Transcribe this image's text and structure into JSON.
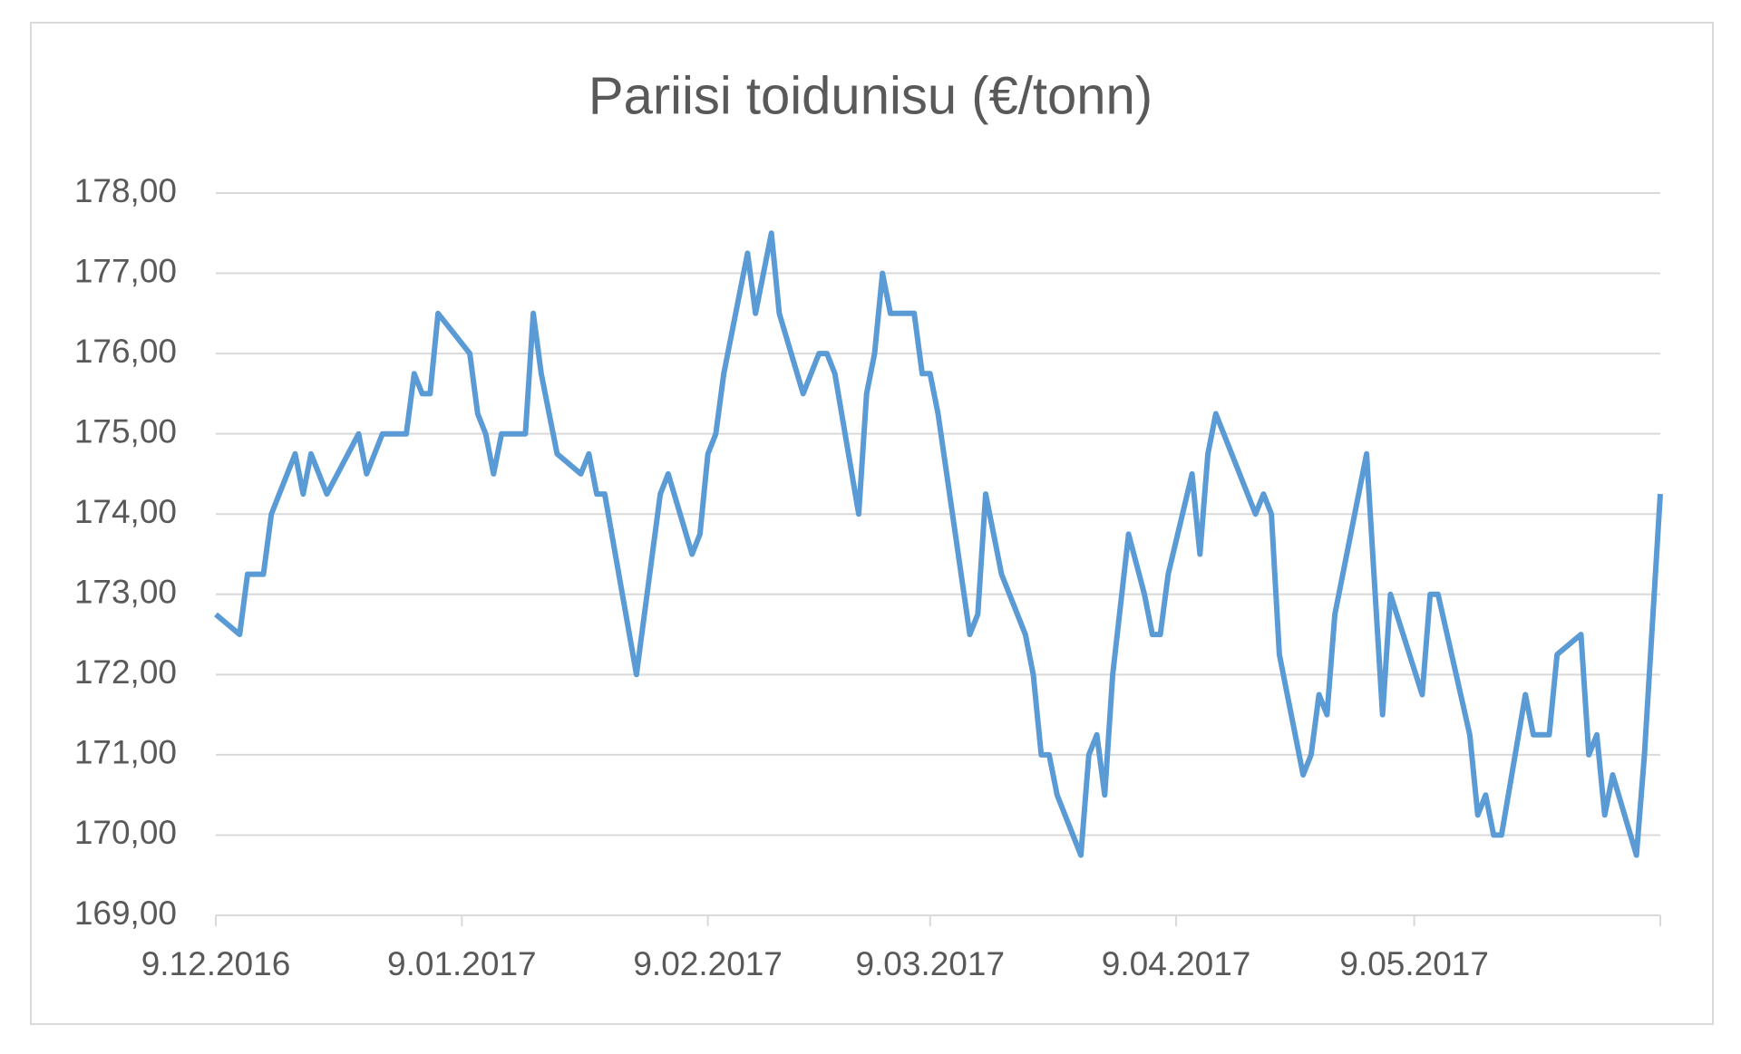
{
  "chart_data": {
    "type": "line",
    "title": "Pariisi toidunisu (€/tonn)",
    "x": [
      "2016-12-09",
      "2016-12-12",
      "2016-12-13",
      "2016-12-15",
      "2016-12-16",
      "2016-12-17",
      "2016-12-19",
      "2016-12-20",
      "2016-12-21",
      "2016-12-23",
      "2016-12-27",
      "2016-12-28",
      "2016-12-30",
      "2017-01-02",
      "2017-01-03",
      "2017-01-04",
      "2017-01-05",
      "2017-01-06",
      "2017-01-10",
      "2017-01-11",
      "2017-01-12",
      "2017-01-13",
      "2017-01-14",
      "2017-01-17",
      "2017-01-18",
      "2017-01-19",
      "2017-01-20",
      "2017-01-21",
      "2017-01-24",
      "2017-01-25",
      "2017-01-26",
      "2017-01-27",
      "2017-01-31",
      "2017-02-02",
      "2017-02-03",
      "2017-02-04",
      "2017-02-07",
      "2017-02-08",
      "2017-02-09",
      "2017-02-10",
      "2017-02-11",
      "2017-02-14",
      "2017-02-15",
      "2017-02-17",
      "2017-02-18",
      "2017-02-21",
      "2017-02-23",
      "2017-02-24",
      "2017-02-25",
      "2017-02-28",
      "2017-03-01",
      "2017-03-02",
      "2017-03-03",
      "2017-03-04",
      "2017-03-07",
      "2017-03-08",
      "2017-03-09",
      "2017-03-10",
      "2017-03-14",
      "2017-03-15",
      "2017-03-16",
      "2017-03-17",
      "2017-03-18",
      "2017-03-21",
      "2017-03-22",
      "2017-03-23",
      "2017-03-24",
      "2017-03-25",
      "2017-03-28",
      "2017-03-29",
      "2017-03-30",
      "2017-03-31",
      "2017-04-01",
      "2017-04-03",
      "2017-04-05",
      "2017-04-06",
      "2017-04-07",
      "2017-04-08",
      "2017-04-11",
      "2017-04-12",
      "2017-04-13",
      "2017-04-14",
      "2017-04-19",
      "2017-04-20",
      "2017-04-21",
      "2017-04-22",
      "2017-04-25",
      "2017-04-26",
      "2017-04-27",
      "2017-04-28",
      "2017-04-29",
      "2017-05-03",
      "2017-05-05",
      "2017-05-06",
      "2017-05-10",
      "2017-05-11",
      "2017-05-12",
      "2017-05-16",
      "2017-05-17",
      "2017-05-18",
      "2017-05-19",
      "2017-05-20",
      "2017-05-23",
      "2017-05-24",
      "2017-05-26",
      "2017-05-27",
      "2017-05-30",
      "2017-05-31",
      "2017-06-01",
      "2017-06-02",
      "2017-06-03",
      "2017-06-06",
      "2017-06-07",
      "2017-06-09"
    ],
    "series": [
      {
        "color": "#5b9bd5",
        "values": [
          172.75,
          172.5,
          173.25,
          173.25,
          174.0,
          174.25,
          174.75,
          174.25,
          174.75,
          174.25,
          175.0,
          174.5,
          175.0,
          175.0,
          175.75,
          175.5,
          175.5,
          176.5,
          176.0,
          175.25,
          175.0,
          174.5,
          175.0,
          175.0,
          176.5,
          175.75,
          175.25,
          174.75,
          174.5,
          174.75,
          174.25,
          174.25,
          172.0,
          173.5,
          174.25,
          174.5,
          173.5,
          173.75,
          174.75,
          175.0,
          175.75,
          177.25,
          176.5,
          177.5,
          176.5,
          175.5,
          176.0,
          176.0,
          175.75,
          174.0,
          175.5,
          176.0,
          177.0,
          176.5,
          176.5,
          175.75,
          175.75,
          175.25,
          172.5,
          172.75,
          174.25,
          173.75,
          173.25,
          172.5,
          172.0,
          171.0,
          171.0,
          170.5,
          169.75,
          171.0,
          171.25,
          170.5,
          172.0,
          173.75,
          173.0,
          172.5,
          172.5,
          173.25,
          174.5,
          173.5,
          174.75,
          175.25,
          174.0,
          174.25,
          174.0,
          172.25,
          170.75,
          171.0,
          171.75,
          171.5,
          172.75,
          174.75,
          171.5,
          173.0,
          171.75,
          173.0,
          173.0,
          171.25,
          170.25,
          170.5,
          170.0,
          170.0,
          171.75,
          171.25,
          171.25,
          172.25,
          172.5,
          171.0,
          171.25,
          170.25,
          170.75,
          169.75,
          171.0,
          174.25
        ]
      }
    ],
    "xlim": [
      "2016-12-09",
      "2017-06-09"
    ],
    "xticks": [
      {
        "value": "2016-12-09",
        "label": "9.12.2016"
      },
      {
        "value": "2017-01-09",
        "label": "9.01.2017"
      },
      {
        "value": "2017-02-09",
        "label": "9.02.2017"
      },
      {
        "value": "2017-03-09",
        "label": "9.03.2017"
      },
      {
        "value": "2017-04-09",
        "label": "9.04.2017"
      },
      {
        "value": "2017-05-09",
        "label": "9.05.2017"
      }
    ],
    "ylim": [
      169,
      178
    ],
    "yticks": [
      {
        "value": 169,
        "label": "169,00"
      },
      {
        "value": 170,
        "label": "170,00"
      },
      {
        "value": 171,
        "label": "171,00"
      },
      {
        "value": 172,
        "label": "172,00"
      },
      {
        "value": 173,
        "label": "173,00"
      },
      {
        "value": 174,
        "label": "174,00"
      },
      {
        "value": 175,
        "label": "175,00"
      },
      {
        "value": 176,
        "label": "176,00"
      },
      {
        "value": 177,
        "label": "177,00"
      },
      {
        "value": 178,
        "label": "178,00"
      }
    ],
    "grid": true
  }
}
